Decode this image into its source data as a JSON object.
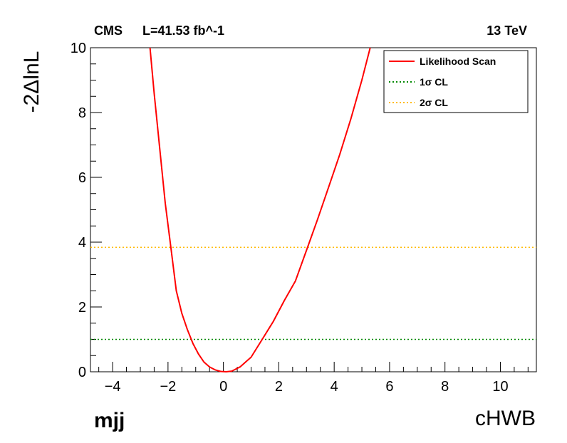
{
  "header": {
    "experiment": "CMS",
    "luminosity": "L=41.53 fb^-1",
    "energy": "13 TeV"
  },
  "corner_label": "mjj",
  "chart_data": {
    "type": "line",
    "xlabel": "cHWB",
    "ylabel": "-2ΔlnL",
    "xlim": [
      -4.8,
      11.3
    ],
    "ylim": [
      0,
      10
    ],
    "x_ticks": [
      -4,
      -2,
      0,
      2,
      4,
      6,
      8,
      10
    ],
    "y_ticks": [
      0,
      2,
      4,
      6,
      8,
      10
    ],
    "grid": false,
    "legend_position": "top-right",
    "series": [
      {
        "name": "Likelihood Scan",
        "style": "solid",
        "color": "#ff0000",
        "x": [
          -2.65,
          -2.5,
          -2.3,
          -2.1,
          -1.9,
          -1.7,
          -1.5,
          -1.3,
          -1.1,
          -0.9,
          -0.7,
          -0.5,
          -0.3,
          -0.1,
          0.1,
          0.3,
          0.6,
          1.0,
          1.4,
          1.8,
          2.2,
          2.6,
          3.0,
          3.4,
          3.8,
          4.2,
          4.6,
          5.0,
          5.3
        ],
        "y": [
          10.0,
          8.6,
          6.9,
          5.2,
          3.85,
          2.5,
          1.8,
          1.3,
          0.87,
          0.55,
          0.3,
          0.15,
          0.06,
          0.01,
          0.0,
          0.02,
          0.15,
          0.45,
          1.0,
          1.55,
          2.2,
          2.8,
          3.75,
          4.7,
          5.7,
          6.7,
          7.8,
          9.0,
          10.0
        ]
      },
      {
        "name": "1σ CL",
        "style": "dotted",
        "color": "#008800",
        "y_value": 1.0
      },
      {
        "name": "2σ CL",
        "style": "dotted",
        "color": "#ffbb00",
        "y_value": 3.84
      }
    ]
  },
  "colors": {
    "likelihood": "#ff0000",
    "cl1": "#008800",
    "cl2": "#ffbb00"
  }
}
